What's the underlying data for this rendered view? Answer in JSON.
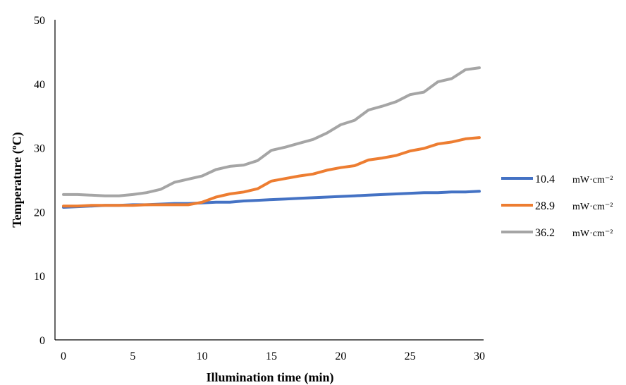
{
  "chart_data": {
    "type": "line",
    "title": "",
    "xlabel": "Illumination time (min)",
    "ylabel": "Temperature (ºC)",
    "xlim": [
      0,
      30
    ],
    "ylim": [
      0,
      50
    ],
    "xticks": [
      0,
      5,
      10,
      15,
      20,
      25,
      30
    ],
    "yticks": [
      0,
      10,
      20,
      30,
      40,
      50
    ],
    "grid": false,
    "legend_position": "right",
    "x": [
      0,
      1,
      2,
      3,
      4,
      5,
      6,
      7,
      8,
      9,
      10,
      11,
      12,
      13,
      14,
      15,
      16,
      17,
      18,
      19,
      20,
      21,
      22,
      23,
      24,
      25,
      26,
      27,
      28,
      29,
      30
    ],
    "series": [
      {
        "name": "10.4",
        "unit": "mW·cm⁻²",
        "color": "#4472C4",
        "values": [
          20.7,
          20.8,
          20.9,
          21.0,
          21.0,
          21.1,
          21.1,
          21.2,
          21.3,
          21.3,
          21.4,
          21.5,
          21.5,
          21.7,
          21.8,
          21.9,
          22.0,
          22.1,
          22.2,
          22.3,
          22.4,
          22.5,
          22.6,
          22.7,
          22.8,
          22.9,
          23.0,
          23.0,
          23.1,
          23.1,
          23.2
        ]
      },
      {
        "name": "28.9",
        "unit": "mW·cm⁻²",
        "color": "#ED7D31",
        "values": [
          20.9,
          20.9,
          21.0,
          21.0,
          21.0,
          21.0,
          21.1,
          21.1,
          21.1,
          21.1,
          21.5,
          22.3,
          22.8,
          23.1,
          23.6,
          24.8,
          25.2,
          25.6,
          25.9,
          26.5,
          26.9,
          27.2,
          28.1,
          28.4,
          28.8,
          29.5,
          29.9,
          30.6,
          30.9,
          31.4,
          31.6
        ]
      },
      {
        "name": "36.2",
        "unit": "mW·cm⁻²",
        "color": "#A5A5A5",
        "values": [
          22.7,
          22.7,
          22.6,
          22.5,
          22.5,
          22.7,
          23.0,
          23.5,
          24.6,
          25.1,
          25.6,
          26.6,
          27.1,
          27.3,
          28.0,
          29.6,
          30.1,
          30.7,
          31.3,
          32.3,
          33.6,
          34.3,
          35.9,
          36.5,
          37.2,
          38.3,
          38.7,
          40.3,
          40.8,
          42.2,
          42.5
        ]
      }
    ]
  }
}
